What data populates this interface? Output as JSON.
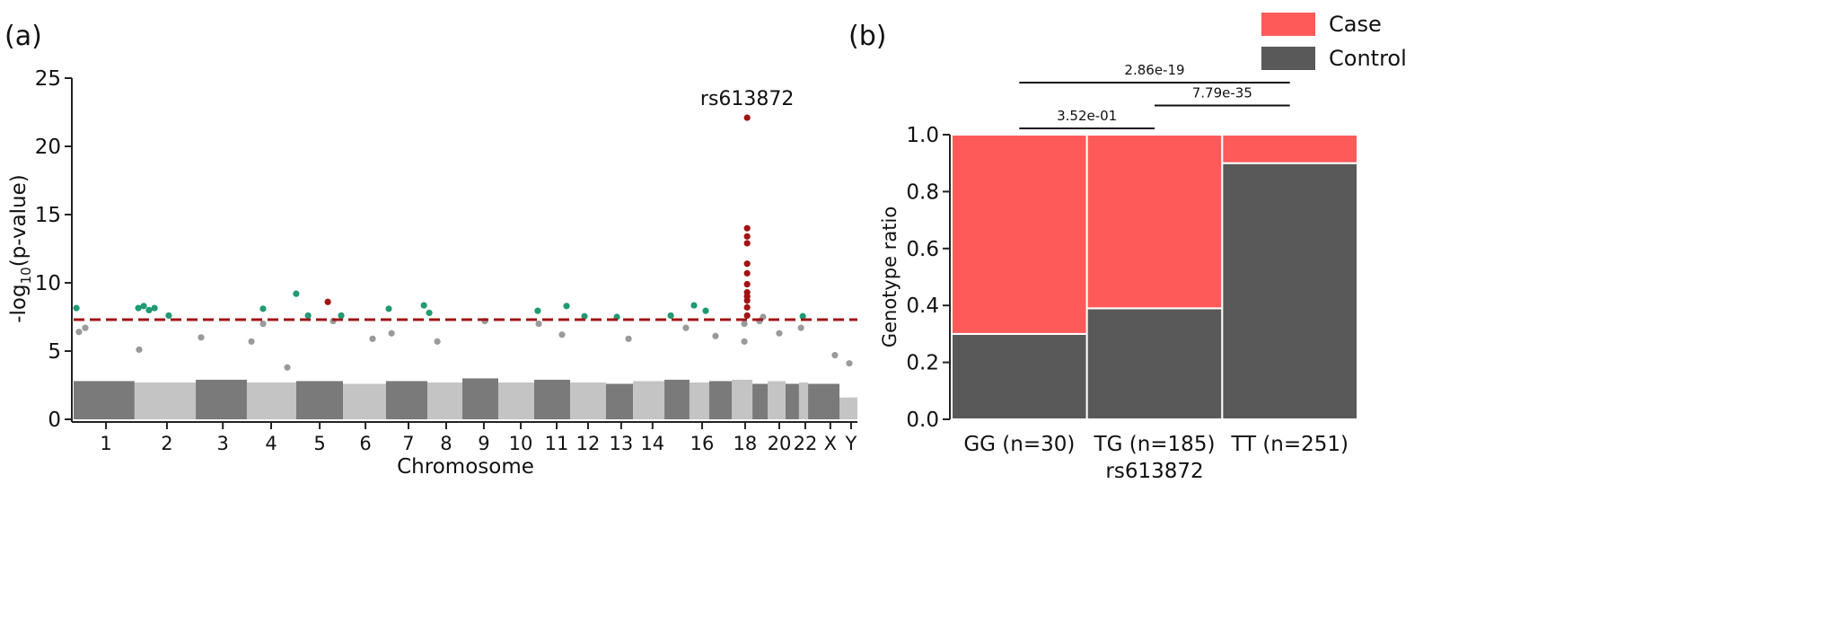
{
  "chart_data": [
    {
      "type": "manhattan",
      "panel_label": "(a)",
      "x_label": "Chromosome",
      "y_label_parts": [
        "-log",
        "10",
        "(p-value)"
      ],
      "xlim": [
        0,
        3099
      ],
      "ylim": [
        0,
        25
      ],
      "yticks": [
        0,
        5,
        10,
        15,
        20,
        25
      ],
      "xticks": [
        {
          "value": 128,
          "label": "1"
        },
        {
          "value": 369,
          "label": "2"
        },
        {
          "value": 590,
          "label": "3"
        },
        {
          "value": 781,
          "label": "4"
        },
        {
          "value": 973,
          "label": "5"
        },
        {
          "value": 1154,
          "label": "6"
        },
        {
          "value": 1324,
          "label": "7"
        },
        {
          "value": 1473,
          "label": "8"
        },
        {
          "value": 1622,
          "label": "9"
        },
        {
          "value": 1768,
          "label": "10"
        },
        {
          "value": 1910,
          "label": "11"
        },
        {
          "value": 2034,
          "label": "12"
        },
        {
          "value": 2165,
          "label": "13"
        },
        {
          "value": 2289,
          "label": "14"
        },
        {
          "value": 2485,
          "label": "16"
        },
        {
          "value": 2655,
          "label": "18"
        },
        {
          "value": 2790,
          "label": "20"
        },
        {
          "value": 2893,
          "label": "22"
        },
        {
          "value": 2992,
          "label": "X"
        },
        {
          "value": 3074,
          "label": "Y"
        }
      ],
      "chromosome_bounds": [
        0,
        241,
        483,
        685,
        880,
        1065,
        1235,
        1399,
        1537,
        1679,
        1821,
        1963,
        2105,
        2212,
        2336,
        2435,
        2513,
        2602,
        2684,
        2744,
        2815,
        2868,
        2904,
        3028,
        3099
      ],
      "band_tops": [
        2.8,
        2.7,
        2.9,
        2.7,
        2.8,
        2.6,
        2.8,
        2.7,
        3.0,
        2.7,
        2.9,
        2.7,
        2.6,
        2.8,
        2.9,
        2.7,
        2.8,
        2.9,
        2.6,
        2.8,
        2.6,
        2.7,
        2.6,
        1.6
      ],
      "band_colors": [
        "#7a7a7a",
        "#c4c4c4"
      ],
      "threshold": 7.3,
      "threshold_color": "#a01414",
      "series": [
        {
          "color": "#9a9a9a",
          "x": [
            21,
            46,
            259,
            504,
            703,
            749,
            845,
            1026,
            1182,
            1257,
            1438,
            1626,
            1839,
            1931,
            2194,
            2421,
            2538,
            2652,
            2652,
            2712,
            2726,
            2790,
            2876,
            3010,
            3067
          ],
          "values": [
            6.4,
            6.7,
            5.1,
            6.0,
            5.7,
            7.0,
            3.8,
            7.2,
            5.9,
            6.3,
            5.7,
            7.2,
            7.0,
            6.2,
            5.9,
            6.7,
            6.1,
            7.0,
            5.7,
            7.2,
            7.5,
            6.3,
            6.7,
            4.7,
            4.1
          ]
        },
        {
          "color": "#1f9a72",
          "x": [
            11,
            256,
            277,
            298,
            320,
            376,
            749,
            880,
            927,
            1058,
            1246,
            1385,
            1406,
            1835,
            1949,
            2020,
            2148,
            2361,
            2453,
            2499,
            2883
          ],
          "values": [
            8.15,
            8.15,
            8.3,
            8.0,
            8.15,
            7.6,
            8.1,
            9.2,
            7.6,
            7.6,
            8.1,
            8.35,
            7.8,
            7.95,
            8.3,
            7.55,
            7.5,
            7.6,
            8.35,
            7.95,
            7.55
          ]
        },
        {
          "color": "#a01414",
          "x": [
            1005,
            2663,
            2663,
            2663,
            2663,
            2663,
            2663,
            2663,
            2663,
            2663,
            2663,
            2663,
            2663
          ],
          "values": [
            8.6,
            22.1,
            14.0,
            13.4,
            12.9,
            11.4,
            10.7,
            9.9,
            9.3,
            9.0,
            8.7,
            8.2,
            7.6
          ]
        }
      ],
      "annotation": {
        "text": "rs613872",
        "x": 2663,
        "y": 22.1
      }
    },
    {
      "type": "stacked_bar",
      "panel_label": "(b)",
      "x_label": "rs613872",
      "y_label": "Genotype ratio",
      "categories": [
        "GG (n=30)",
        "TG (n=185)",
        "TT (n=251)"
      ],
      "series": [
        {
          "name": "Case",
          "color": "#ff5a5a",
          "values": [
            0.7,
            0.61,
            0.1
          ]
        },
        {
          "name": "Control",
          "color": "#595959",
          "values": [
            0.3,
            0.39,
            0.9
          ]
        }
      ],
      "ylim": [
        0,
        1
      ],
      "yticks": [
        {
          "value": 0,
          "label": "0.0"
        },
        {
          "value": 0.2,
          "label": "0.2"
        },
        {
          "value": 0.4,
          "label": "0.4"
        },
        {
          "value": 0.6,
          "label": "0.6"
        },
        {
          "value": 0.8,
          "label": "0.8"
        },
        {
          "value": 1,
          "label": "1.0"
        }
      ],
      "comparisons": [
        {
          "from": 0,
          "to": 2,
          "label": "2.86e-19"
        },
        {
          "from": 1,
          "to": 2,
          "label": "7.79e-35"
        },
        {
          "from": 0,
          "to": 1,
          "label": "3.52e-01"
        }
      ]
    }
  ]
}
